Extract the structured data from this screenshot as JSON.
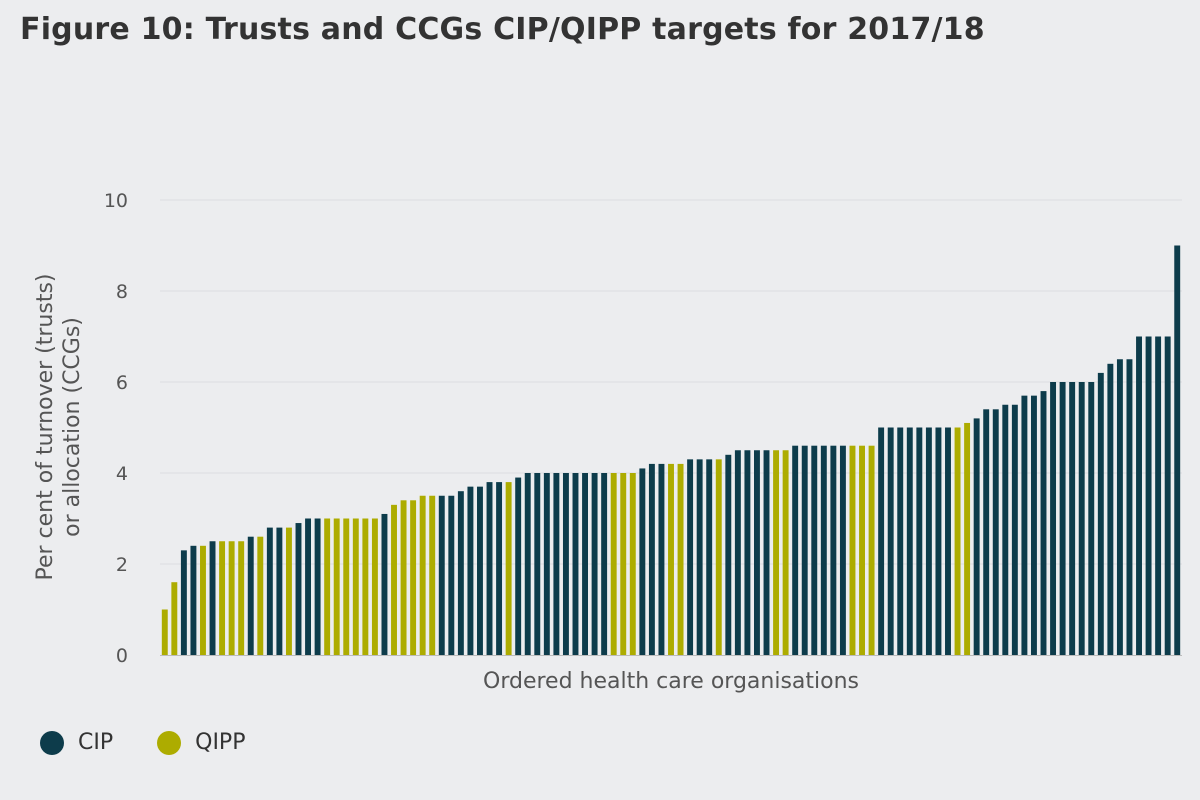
{
  "chart_data": {
    "type": "bar",
    "title": "Figure 10: Trusts and CCGs CIP/QIPP targets for 2017/18",
    "xlabel": "Ordered health care organisations",
    "ylabel": "Per cent of turnover (trusts) or allocation (CCGs)",
    "ylim": [
      0,
      10
    ],
    "yticks": [
      0,
      2,
      4,
      6,
      8,
      10
    ],
    "grid": true,
    "legend_position": "bottom-left",
    "series": [
      {
        "name": "CIP",
        "color": "#0d3c4b"
      },
      {
        "name": "QIPP",
        "color": "#adac00"
      }
    ],
    "bars": [
      [
        "QIPP",
        1.0
      ],
      [
        "QIPP",
        1.6
      ],
      [
        "CIP",
        2.3
      ],
      [
        "CIP",
        2.4
      ],
      [
        "QIPP",
        2.4
      ],
      [
        "CIP",
        2.5
      ],
      [
        "QIPP",
        2.5
      ],
      [
        "QIPP",
        2.5
      ],
      [
        "QIPP",
        2.5
      ],
      [
        "CIP",
        2.6
      ],
      [
        "QIPP",
        2.6
      ],
      [
        "CIP",
        2.8
      ],
      [
        "CIP",
        2.8
      ],
      [
        "QIPP",
        2.8
      ],
      [
        "CIP",
        2.9
      ],
      [
        "CIP",
        3.0
      ],
      [
        "CIP",
        3.0
      ],
      [
        "QIPP",
        3.0
      ],
      [
        "QIPP",
        3.0
      ],
      [
        "QIPP",
        3.0
      ],
      [
        "QIPP",
        3.0
      ],
      [
        "QIPP",
        3.0
      ],
      [
        "QIPP",
        3.0
      ],
      [
        "CIP",
        3.1
      ],
      [
        "QIPP",
        3.3
      ],
      [
        "QIPP",
        3.4
      ],
      [
        "QIPP",
        3.4
      ],
      [
        "QIPP",
        3.5
      ],
      [
        "QIPP",
        3.5
      ],
      [
        "CIP",
        3.5
      ],
      [
        "CIP",
        3.5
      ],
      [
        "CIP",
        3.6
      ],
      [
        "CIP",
        3.7
      ],
      [
        "CIP",
        3.7
      ],
      [
        "CIP",
        3.8
      ],
      [
        "CIP",
        3.8
      ],
      [
        "QIPP",
        3.8
      ],
      [
        "CIP",
        3.9
      ],
      [
        "CIP",
        4.0
      ],
      [
        "CIP",
        4.0
      ],
      [
        "CIP",
        4.0
      ],
      [
        "CIP",
        4.0
      ],
      [
        "CIP",
        4.0
      ],
      [
        "CIP",
        4.0
      ],
      [
        "CIP",
        4.0
      ],
      [
        "CIP",
        4.0
      ],
      [
        "CIP",
        4.0
      ],
      [
        "QIPP",
        4.0
      ],
      [
        "QIPP",
        4.0
      ],
      [
        "QIPP",
        4.0
      ],
      [
        "CIP",
        4.1
      ],
      [
        "CIP",
        4.2
      ],
      [
        "CIP",
        4.2
      ],
      [
        "QIPP",
        4.2
      ],
      [
        "QIPP",
        4.2
      ],
      [
        "CIP",
        4.3
      ],
      [
        "CIP",
        4.3
      ],
      [
        "CIP",
        4.3
      ],
      [
        "QIPP",
        4.3
      ],
      [
        "CIP",
        4.4
      ],
      [
        "CIP",
        4.5
      ],
      [
        "CIP",
        4.5
      ],
      [
        "CIP",
        4.5
      ],
      [
        "CIP",
        4.5
      ],
      [
        "QIPP",
        4.5
      ],
      [
        "QIPP",
        4.5
      ],
      [
        "CIP",
        4.6
      ],
      [
        "CIP",
        4.6
      ],
      [
        "CIP",
        4.6
      ],
      [
        "CIP",
        4.6
      ],
      [
        "CIP",
        4.6
      ],
      [
        "CIP",
        4.6
      ],
      [
        "QIPP",
        4.6
      ],
      [
        "QIPP",
        4.6
      ],
      [
        "QIPP",
        4.6
      ],
      [
        "CIP",
        5.0
      ],
      [
        "CIP",
        5.0
      ],
      [
        "CIP",
        5.0
      ],
      [
        "CIP",
        5.0
      ],
      [
        "CIP",
        5.0
      ],
      [
        "CIP",
        5.0
      ],
      [
        "CIP",
        5.0
      ],
      [
        "CIP",
        5.0
      ],
      [
        "QIPP",
        5.0
      ],
      [
        "QIPP",
        5.1
      ],
      [
        "CIP",
        5.2
      ],
      [
        "CIP",
        5.4
      ],
      [
        "CIP",
        5.4
      ],
      [
        "CIP",
        5.5
      ],
      [
        "CIP",
        5.5
      ],
      [
        "CIP",
        5.7
      ],
      [
        "CIP",
        5.7
      ],
      [
        "CIP",
        5.8
      ],
      [
        "CIP",
        6.0
      ],
      [
        "CIP",
        6.0
      ],
      [
        "CIP",
        6.0
      ],
      [
        "CIP",
        6.0
      ],
      [
        "CIP",
        6.0
      ],
      [
        "CIP",
        6.2
      ],
      [
        "CIP",
        6.4
      ],
      [
        "CIP",
        6.5
      ],
      [
        "CIP",
        6.5
      ],
      [
        "CIP",
        7.0
      ],
      [
        "CIP",
        7.0
      ],
      [
        "CIP",
        7.0
      ],
      [
        "CIP",
        7.0
      ],
      [
        "CIP",
        9.0
      ]
    ]
  },
  "legend": {
    "items": [
      {
        "label": "CIP",
        "color": "#0d3c4b"
      },
      {
        "label": "QIPP",
        "color": "#adac00"
      }
    ]
  }
}
